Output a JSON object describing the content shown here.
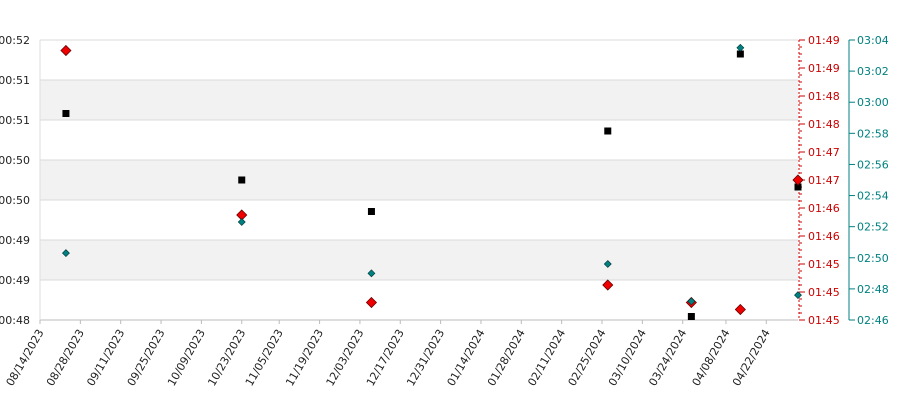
{
  "chart_data": {
    "type": "scatter",
    "grid": "horizontal bands",
    "colors": {
      "black_series": "#000000",
      "red_series": "#ee0000",
      "teal_series": "#008080"
    },
    "x_dates": [
      "08/14/2023",
      "08/28/2023",
      "09/11/2023",
      "09/25/2023",
      "10/09/2023",
      "10/23/2023",
      "11/05/2023",
      "11/19/2023",
      "12/03/2023",
      "12/17/2023",
      "12/31/2023",
      "01/14/2024",
      "01/28/2024",
      "02/11/2024",
      "02/25/2024",
      "03/10/2024",
      "03/24/2024",
      "04/08/2024",
      "04/22/2024"
    ],
    "x_range": [
      "08/14/2023",
      "05/03/2024"
    ],
    "left_axis": {
      "ticks": [
        "00:48",
        "00:49",
        "00:49",
        "00:50",
        "00:50",
        "00:51",
        "00:51",
        "00:52"
      ],
      "range_sec": [
        48,
        52
      ]
    },
    "right_axis_1": {
      "ticks": [
        "01:45",
        "01:45",
        "01:45",
        "01:46",
        "01:46",
        "01:47",
        "01:47",
        "01:48",
        "01:48",
        "01:49",
        "01:49"
      ],
      "range_sec": [
        105,
        109
      ]
    },
    "right_axis_2": {
      "ticks": [
        "02:46",
        "02:48",
        "02:50",
        "02:52",
        "02:54",
        "02:56",
        "02:58",
        "03:00",
        "03:02",
        "03:04"
      ],
      "range_sec": [
        166,
        184
      ]
    },
    "series": [
      {
        "axis": "left",
        "marker": "square",
        "color": "#000000",
        "points": [
          {
            "x": "08/23/2023",
            "y_sec": 50.95
          },
          {
            "x": "10/23/2023",
            "y_sec": 50.0
          },
          {
            "x": "12/07/2023",
            "y_sec": 49.55
          },
          {
            "x": "02/27/2024",
            "y_sec": 50.7
          },
          {
            "x": "03/27/2024",
            "y_sec": 48.05
          },
          {
            "x": "04/13/2024",
            "y_sec": 51.8
          },
          {
            "x": "05/03/2024",
            "y_sec": 49.9
          }
        ]
      },
      {
        "axis": "right_1",
        "marker": "circle",
        "color": "#ee0000",
        "points": [
          {
            "x": "08/23/2023",
            "y_sec": 108.85
          },
          {
            "x": "10/23/2023",
            "y_sec": 106.5
          },
          {
            "x": "12/07/2023",
            "y_sec": 105.25
          },
          {
            "x": "02/27/2024",
            "y_sec": 105.5
          },
          {
            "x": "03/27/2024",
            "y_sec": 105.25
          },
          {
            "x": "04/13/2024",
            "y_sec": 105.15
          },
          {
            "x": "05/03/2024",
            "y_sec": 107.0
          }
        ]
      },
      {
        "axis": "right_2",
        "marker": "diamond",
        "color": "#008080",
        "points": [
          {
            "x": "08/23/2023",
            "y_sec": 170.3
          },
          {
            "x": "10/23/2023",
            "y_sec": 172.3
          },
          {
            "x": "12/07/2023",
            "y_sec": 169.0
          },
          {
            "x": "02/27/2024",
            "y_sec": 169.6
          },
          {
            "x": "03/27/2024",
            "y_sec": 167.2
          },
          {
            "x": "04/13/2024",
            "y_sec": 183.5
          },
          {
            "x": "05/03/2024",
            "y_sec": 167.6
          }
        ]
      }
    ]
  }
}
